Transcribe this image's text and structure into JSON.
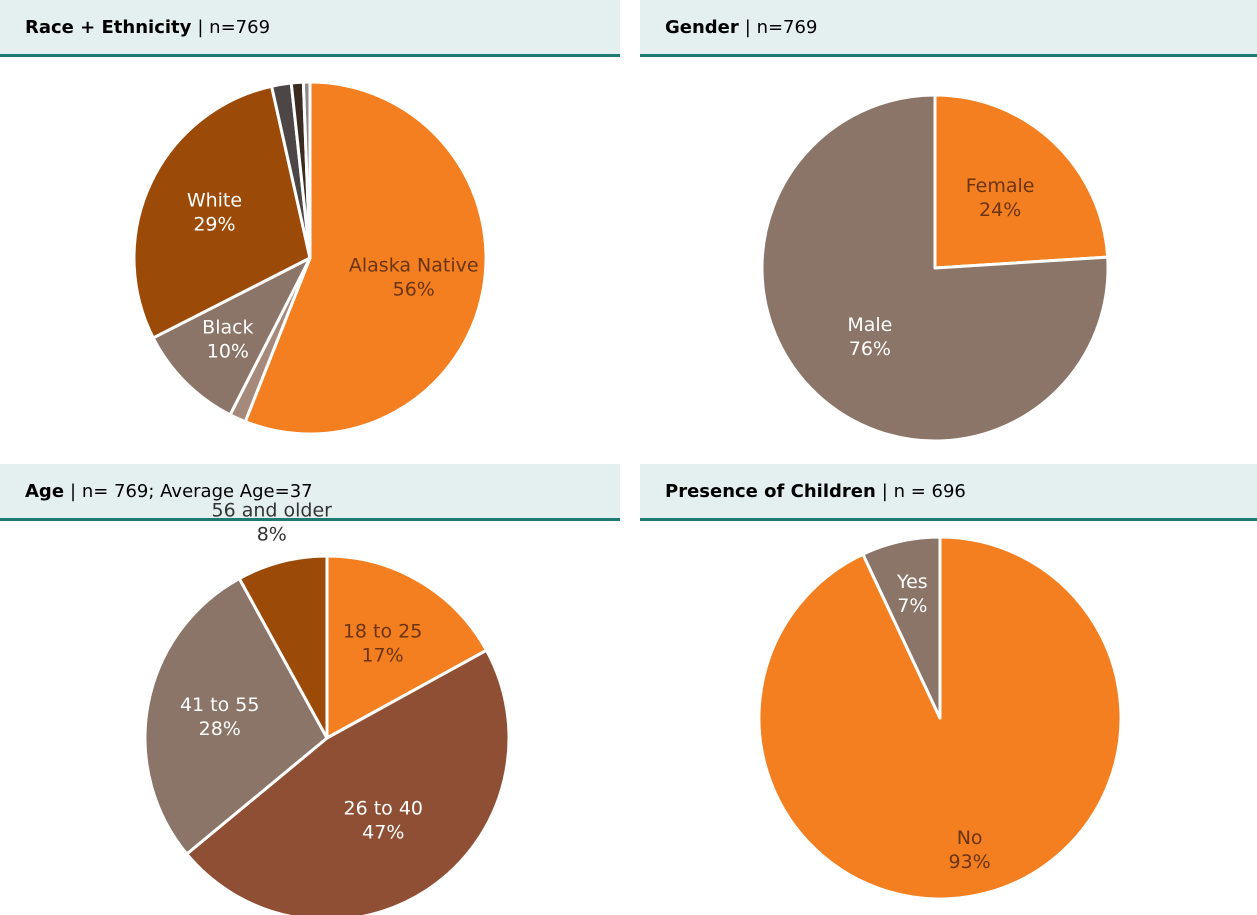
{
  "chart_data": [
    {
      "type": "pie",
      "title": "Race + Ethnicity",
      "subtitle": "| n=769",
      "categories": [
        "Alaska Native",
        null,
        "Black",
        "White",
        null,
        null,
        null
      ],
      "values": [
        56,
        1.5,
        10,
        29,
        1.8,
        1.1,
        0.6
      ],
      "value_labels": [
        "56%",
        null,
        "10%",
        "29%",
        null,
        null,
        null
      ],
      "colors": [
        "#f47f20",
        "#a58a7c",
        "#8b7468",
        "#9c4a08",
        "#4d4646",
        "#3b2c22",
        "#8a8a8a"
      ]
    },
    {
      "type": "pie",
      "title": "Gender",
      "subtitle": "| n=769",
      "categories": [
        "Female",
        "Male"
      ],
      "values": [
        24,
        76
      ],
      "value_labels": [
        "24%",
        "76%"
      ],
      "colors": [
        "#f47f20",
        "#8b7468"
      ]
    },
    {
      "type": "pie",
      "title": "Age",
      "subtitle": "| n= 769; Average Age=37",
      "categories": [
        "18 to 25",
        "26 to 40",
        "41 to 55",
        "56 and older"
      ],
      "values": [
        17,
        47,
        28,
        8
      ],
      "value_labels": [
        "17%",
        "47%",
        "28%",
        "8%"
      ],
      "colors": [
        "#f47f20",
        "#8f4f35",
        "#8b7468",
        "#9c4a08"
      ]
    },
    {
      "type": "pie",
      "title": "Presence of Children",
      "subtitle": "| n = 696",
      "categories": [
        "No",
        "Yes"
      ],
      "values": [
        93,
        7
      ],
      "value_labels": [
        "93%",
        "7%"
      ],
      "colors": [
        "#f47f20",
        "#8b7468"
      ]
    }
  ]
}
